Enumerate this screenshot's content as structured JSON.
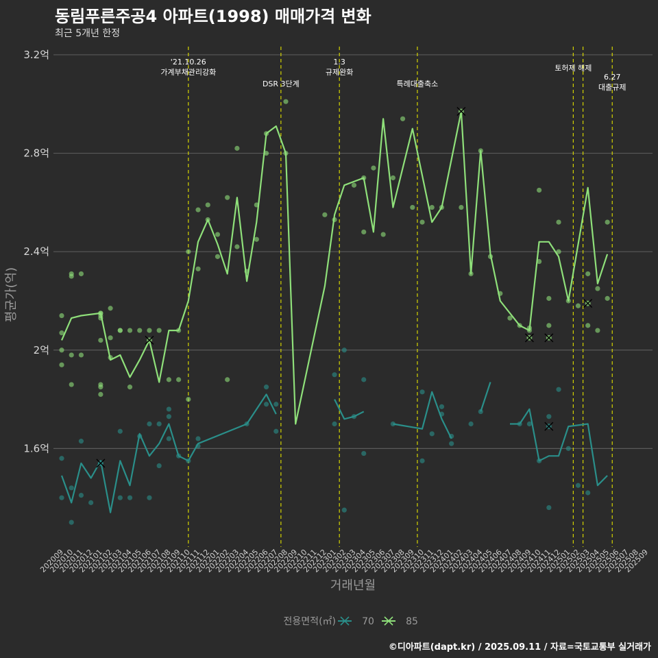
{
  "header": {
    "title": "동림푸른주공4 아파트(1998) 매매가격 변화",
    "subtitle": "최근 5개년 한정"
  },
  "caption": "©디아파트(dapt.kr) / 2025.09.11 / 자료=국토교통부 실거래가",
  "legend": {
    "title": "전용면적(㎡)"
  },
  "colors": {
    "background": "#2b2b2b",
    "grid": "#5a5a5a",
    "s70": "#2a8f8a",
    "s85": "#8fe07a",
    "event": "#d4d400"
  },
  "chart_data": {
    "type": "line",
    "xlabel": "거래년월",
    "ylabel": "평균가(억)",
    "categories": [
      "202009",
      "202010",
      "202011",
      "202012",
      "202101",
      "202102",
      "202103",
      "202104",
      "202105",
      "202106",
      "202107",
      "202108",
      "202109",
      "202110",
      "202111",
      "202112",
      "202201",
      "202202",
      "202203",
      "202204",
      "202205",
      "202206",
      "202207",
      "202208",
      "202209",
      "202210",
      "202211",
      "202212",
      "202301",
      "202302",
      "202303",
      "202304",
      "202305",
      "202306",
      "202307",
      "202308",
      "202309",
      "202310",
      "202311",
      "202312",
      "202401",
      "202402",
      "202403",
      "202404",
      "202405",
      "202406",
      "202407",
      "202408",
      "202409",
      "202410",
      "202411",
      "202412",
      "202501",
      "202502",
      "202503",
      "202504",
      "202505",
      "202506",
      "202507",
      "202508",
      "202509"
    ],
    "ylim": [
      1.2,
      3.25
    ],
    "yticks": [
      {
        "v": 1.6,
        "label": "1.6억"
      },
      {
        "v": 2.0,
        "label": "2억"
      },
      {
        "v": 2.4,
        "label": "2.4억"
      },
      {
        "v": 2.8,
        "label": "2.8억"
      },
      {
        "v": 3.2,
        "label": "3.2억"
      }
    ],
    "grid": true,
    "legend_position": "bottom",
    "series": [
      {
        "name": "70",
        "line": [
          [
            0,
            1.49
          ],
          [
            1,
            1.38
          ],
          [
            2,
            1.54
          ],
          [
            3,
            1.48
          ],
          [
            4,
            1.55
          ],
          [
            5,
            1.34
          ],
          [
            6,
            1.55
          ],
          [
            7,
            1.45
          ],
          [
            8,
            1.66
          ],
          [
            9,
            1.57
          ],
          [
            10,
            1.62
          ],
          [
            11,
            1.7
          ],
          [
            12,
            1.57
          ],
          [
            13,
            1.55
          ],
          [
            14,
            1.62
          ],
          [
            19,
            1.7
          ],
          [
            21,
            1.82
          ],
          [
            22,
            1.74
          ],
          null,
          [
            28,
            1.8
          ],
          [
            29,
            1.72
          ],
          [
            30,
            1.73
          ],
          [
            31,
            1.75
          ],
          null,
          [
            34,
            1.7
          ],
          [
            37,
            1.68
          ],
          [
            38,
            1.83
          ],
          [
            39,
            1.72
          ],
          [
            40,
            1.64
          ],
          null,
          [
            43,
            1.75
          ],
          [
            44,
            1.87
          ],
          null,
          [
            46,
            1.7
          ],
          [
            47,
            1.7
          ],
          [
            48,
            1.76
          ],
          [
            49,
            1.55
          ],
          [
            50,
            1.57
          ],
          [
            51,
            1.57
          ],
          [
            52,
            1.69
          ],
          [
            54,
            1.7
          ],
          [
            55,
            1.45
          ],
          [
            56,
            1.49
          ]
        ],
        "points": [
          [
            0,
            1.56
          ],
          [
            0,
            1.4
          ],
          [
            1,
            1.44
          ],
          [
            1,
            1.3
          ],
          [
            2,
            1.41
          ],
          [
            2,
            1.63
          ],
          [
            3,
            1.38
          ],
          [
            4,
            1.54
          ],
          [
            6,
            1.67
          ],
          [
            6,
            1.4
          ],
          [
            7,
            1.4
          ],
          [
            8,
            1.65
          ],
          [
            9,
            1.4
          ],
          [
            9,
            1.7
          ],
          [
            10,
            1.53
          ],
          [
            10,
            1.7
          ],
          [
            11,
            1.76
          ],
          [
            11,
            1.73
          ],
          [
            11,
            1.64
          ],
          [
            12,
            1.57
          ],
          [
            13,
            1.55
          ],
          [
            14,
            1.61
          ],
          [
            14,
            1.64
          ],
          [
            19,
            1.7
          ],
          [
            21,
            1.85
          ],
          [
            21,
            1.78
          ],
          [
            22,
            1.78
          ],
          [
            22,
            1.67
          ],
          [
            28,
            1.9
          ],
          [
            28,
            1.7
          ],
          [
            29,
            1.35
          ],
          [
            29,
            2.0
          ],
          [
            30,
            1.73
          ],
          [
            31,
            1.58
          ],
          [
            31,
            1.88
          ],
          [
            34,
            1.7
          ],
          [
            37,
            1.83
          ],
          [
            37,
            1.55
          ],
          [
            38,
            1.66
          ],
          [
            39,
            1.77
          ],
          [
            39,
            1.74
          ],
          [
            40,
            1.62
          ],
          [
            40,
            1.65
          ],
          [
            42,
            1.7
          ],
          [
            43,
            1.75
          ],
          [
            47,
            1.7
          ],
          [
            48,
            1.7
          ],
          [
            49,
            1.55
          ],
          [
            50,
            1.36
          ],
          [
            50,
            1.73
          ],
          [
            51,
            1.84
          ],
          [
            52,
            1.6
          ],
          [
            53,
            1.45
          ],
          [
            54,
            1.42
          ]
        ],
        "cancelled": [
          [
            4,
            1.54
          ],
          [
            50,
            1.69
          ]
        ]
      },
      {
        "name": "85",
        "line": [
          [
            0,
            2.04
          ],
          [
            1,
            2.13
          ],
          [
            2,
            2.14
          ],
          [
            4,
            2.15
          ],
          [
            5,
            1.96
          ],
          [
            6,
            1.98
          ],
          [
            7,
            1.89
          ],
          [
            8,
            1.96
          ],
          [
            9,
            2.04
          ],
          [
            10,
            1.87
          ],
          [
            11,
            2.08
          ],
          [
            12,
            2.08
          ],
          [
            13,
            2.2
          ],
          [
            14,
            2.44
          ],
          [
            15,
            2.53
          ],
          [
            16,
            2.43
          ],
          [
            17,
            2.31
          ],
          [
            18,
            2.62
          ],
          [
            19,
            2.28
          ],
          [
            20,
            2.52
          ],
          [
            21,
            2.88
          ],
          [
            22,
            2.91
          ],
          [
            23,
            2.8
          ],
          [
            24,
            1.7
          ],
          [
            27,
            2.26
          ],
          [
            28,
            2.55
          ],
          [
            29,
            2.67
          ],
          [
            31,
            2.7
          ],
          [
            32,
            2.48
          ],
          [
            33,
            2.94
          ],
          [
            34,
            2.58
          ],
          [
            36,
            2.9
          ],
          [
            38,
            2.52
          ],
          [
            39,
            2.58
          ],
          [
            41,
            2.97
          ],
          [
            42,
            2.31
          ],
          [
            43,
            2.81
          ],
          [
            44,
            2.39
          ],
          [
            45,
            2.2
          ],
          [
            47,
            2.1
          ],
          [
            48,
            2.08
          ],
          [
            49,
            2.44
          ],
          [
            50,
            2.44
          ],
          [
            51,
            2.38
          ],
          [
            52,
            2.2
          ],
          [
            54,
            2.66
          ],
          [
            55,
            2.27
          ],
          [
            56,
            2.39
          ]
        ],
        "points": [
          [
            0,
            2.14
          ],
          [
            0,
            2.07
          ],
          [
            0,
            1.94
          ],
          [
            0,
            2.0
          ],
          [
            1,
            2.31
          ],
          [
            1,
            2.3
          ],
          [
            1,
            1.98
          ],
          [
            1,
            1.86
          ],
          [
            2,
            2.31
          ],
          [
            2,
            1.98
          ],
          [
            4,
            2.15
          ],
          [
            4,
            2.14
          ],
          [
            4,
            2.15
          ],
          [
            4,
            2.13
          ],
          [
            4,
            1.82
          ],
          [
            4,
            1.85
          ],
          [
            4,
            1.86
          ],
          [
            4,
            2.04
          ],
          [
            5,
            2.17
          ],
          [
            5,
            2.05
          ],
          [
            5,
            1.97
          ],
          [
            6,
            2.08
          ],
          [
            6,
            2.08
          ],
          [
            7,
            1.85
          ],
          [
            7,
            2.08
          ],
          [
            8,
            2.08
          ],
          [
            9,
            2.08
          ],
          [
            10,
            2.08
          ],
          [
            11,
            1.88
          ],
          [
            12,
            1.88
          ],
          [
            12,
            2.08
          ],
          [
            13,
            2.4
          ],
          [
            13,
            1.8
          ],
          [
            14,
            2.57
          ],
          [
            14,
            2.33
          ],
          [
            15,
            2.53
          ],
          [
            15,
            2.59
          ],
          [
            16,
            2.47
          ],
          [
            16,
            2.38
          ],
          [
            17,
            2.62
          ],
          [
            17,
            1.88
          ],
          [
            18,
            2.82
          ],
          [
            18,
            2.42
          ],
          [
            19,
            2.32
          ],
          [
            20,
            2.59
          ],
          [
            20,
            2.45
          ],
          [
            21,
            2.88
          ],
          [
            21,
            2.8
          ],
          [
            23,
            2.8
          ],
          [
            23,
            3.01
          ],
          [
            27,
            2.55
          ],
          [
            28,
            2.53
          ],
          [
            30,
            2.67
          ],
          [
            31,
            2.7
          ],
          [
            31,
            2.48
          ],
          [
            32,
            2.74
          ],
          [
            33,
            2.47
          ],
          [
            34,
            2.7
          ],
          [
            35,
            2.94
          ],
          [
            36,
            2.58
          ],
          [
            37,
            2.52
          ],
          [
            38,
            2.58
          ],
          [
            39,
            2.58
          ],
          [
            41,
            2.58
          ],
          [
            42,
            2.31
          ],
          [
            43,
            2.81
          ],
          [
            44,
            2.38
          ],
          [
            45,
            2.23
          ],
          [
            46,
            2.13
          ],
          [
            47,
            2.1
          ],
          [
            48,
            2.08
          ],
          [
            48,
            2.09
          ],
          [
            49,
            2.65
          ],
          [
            49,
            2.36
          ],
          [
            50,
            2.21
          ],
          [
            50,
            2.1
          ],
          [
            51,
            2.52
          ],
          [
            51,
            2.4
          ],
          [
            52,
            2.2
          ],
          [
            53,
            2.18
          ],
          [
            54,
            2.31
          ],
          [
            54,
            2.1
          ],
          [
            55,
            2.25
          ],
          [
            55,
            2.08
          ],
          [
            56,
            2.21
          ],
          [
            56,
            2.52
          ]
        ],
        "cancelled": [
          [
            9,
            2.04
          ],
          [
            41,
            2.97
          ],
          [
            48,
            2.05
          ],
          [
            50,
            2.05
          ],
          [
            54,
            2.19
          ]
        ]
      }
    ],
    "events": [
      {
        "x": 13,
        "lines": [
          "'21.10.26",
          "가계부채관리강화"
        ]
      },
      {
        "x": 22.5,
        "lines": [
          "DSR 3단계"
        ]
      },
      {
        "x": 28.5,
        "lines": [
          "1.3",
          "규제완화"
        ]
      },
      {
        "x": 36.5,
        "lines": [
          "특례대출축소"
        ]
      },
      {
        "x": 52.5,
        "lines": [
          "토허제 해제"
        ]
      },
      {
        "x": 53.5,
        "lines": [
          ""
        ]
      },
      {
        "x": 56.5,
        "lines": [
          "6.27",
          "대출규제"
        ]
      }
    ]
  }
}
